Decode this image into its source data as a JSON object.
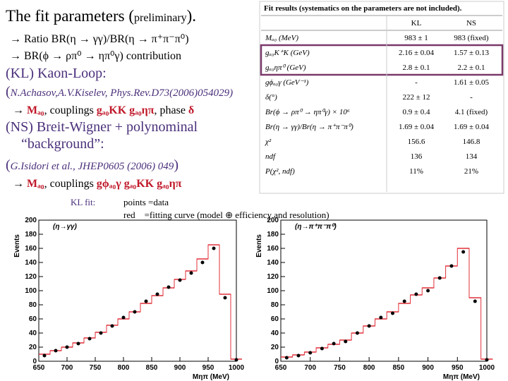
{
  "header": {
    "title": [
      "The fit parameters (",
      "preliminary",
      ")."
    ]
  },
  "lines": [
    [
      "→ Ratio BR(η → γγ)/BR(η → π⁺π⁻π⁰)"
    ],
    [
      "→ BR(ϕ → ρπ⁰ → ηπ⁰γ) contribution"
    ],
    [
      "(KL) Kaon-Loop:"
    ],
    [
      "(",
      "N.Achasov,A.V.Kiselev, Phys.Rev.D73(2006)054029)"
    ],
    [
      "→ ",
      "Mₐ₀",
      ", couplings ",
      "gₐ₀KK gₐ₀ηπ",
      ", phase ",
      "δ"
    ],
    [
      "(NS) Breit-Wigner + polynominal"
    ],
    [
      "“background”:"
    ],
    [
      "(",
      "G.Isidori et al., JHEP0605 (2006) 049",
      ")"
    ],
    [
      "→ ",
      "Mₐ₀",
      ", couplings ",
      "gϕₐ₀γ gₐ₀KK gₐ₀ηπ"
    ]
  ],
  "notes": {
    "fit": "KL fit:",
    "points": "points =data",
    "red": "red    =fitting curve (model ⊕ efficiency and resolution)"
  },
  "table": {
    "caption": "Fit results (systematics on the parameters are not included).",
    "header": [
      "KL",
      "NS"
    ],
    "rows": [
      [
        "Mₐ₀ (MeV)",
        "983 ± 1",
        "983 (fixed)"
      ],
      [
        "gₐ₀K⁺K (GeV)",
        "2.16 ± 0.04",
        "1.57 ± 0.13"
      ],
      [
        "gₐ₀ηπ⁰ (GeV)",
        "2.8 ± 0.1",
        "2.2 ± 0.1"
      ],
      [
        "gϕₐ₀γ (GeV⁻¹)",
        "-",
        "1.61 ± 0.05"
      ],
      [
        "δ(°)",
        "222 ± 12",
        "-"
      ],
      [
        "Br(ϕ → ρπ⁰ → ηπ⁰γ) × 10⁶",
        "0.9 ± 0.4",
        "4.1 (fixed)"
      ],
      [
        "Br(η → γγ)/Br(η → π⁺π⁻π⁰)",
        "1.69 ± 0.04",
        "1.69 ± 0.04"
      ],
      [
        "χ²",
        "156.6",
        "146.8"
      ],
      [
        "ndf",
        "136",
        "134"
      ],
      [
        "P(χ², ndf)",
        "11%",
        "21%"
      ]
    ]
  },
  "chart_data": [
    {
      "type": "hist",
      "title": "(η→γγ)",
      "ylabel": "Events",
      "xlabel": "Mηπ (MeV)",
      "x": [
        660,
        680,
        700,
        720,
        740,
        760,
        780,
        800,
        820,
        840,
        860,
        880,
        900,
        920,
        940,
        960,
        980,
        1000
      ],
      "series": [
        {
          "style": "step",
          "color": "#e0303a",
          "values": [
            10,
            15,
            20,
            26,
            33,
            41,
            51,
            60,
            70,
            82,
            93,
            104,
            116,
            128,
            145,
            165,
            95,
            3
          ]
        },
        {
          "style": "points",
          "color": "#000000",
          "values": [
            8,
            15,
            20,
            25,
            32,
            40,
            50,
            62,
            70,
            85,
            95,
            105,
            115,
            125,
            140,
            160,
            90,
            2
          ]
        }
      ],
      "xlim": [
        650,
        1000
      ],
      "xticks": [
        650,
        700,
        750,
        800,
        850,
        900,
        950,
        1000
      ],
      "ylim": [
        0,
        200
      ],
      "yticks": [
        0,
        20,
        40,
        60,
        80,
        100,
        120,
        140,
        160,
        180,
        200
      ]
    },
    {
      "type": "hist",
      "title": "(η→π⁺π⁻π⁰)",
      "ylabel": "Events",
      "xlabel": "Mηπ (MeV)",
      "x": [
        660,
        680,
        700,
        720,
        740,
        760,
        780,
        800,
        820,
        840,
        860,
        880,
        900,
        920,
        940,
        960,
        980,
        1000
      ],
      "series": [
        {
          "style": "step",
          "color": "#e0303a",
          "values": [
            6,
            9,
            13,
            19,
            24,
            30,
            40,
            50,
            60,
            70,
            82,
            94,
            104,
            118,
            135,
            160,
            90,
            3
          ]
        },
        {
          "style": "points",
          "color": "#000000",
          "values": [
            5,
            8,
            12,
            18,
            25,
            28,
            40,
            50,
            62,
            68,
            85,
            95,
            100,
            118,
            135,
            155,
            85,
            2
          ]
        }
      ],
      "xlim": [
        650,
        1000
      ],
      "xticks": [
        650,
        700,
        750,
        800,
        850,
        900,
        950,
        1000
      ],
      "ylim": [
        0,
        200
      ],
      "yticks": [
        0,
        20,
        40,
        60,
        80,
        100,
        120,
        140,
        160,
        180,
        200
      ]
    }
  ]
}
